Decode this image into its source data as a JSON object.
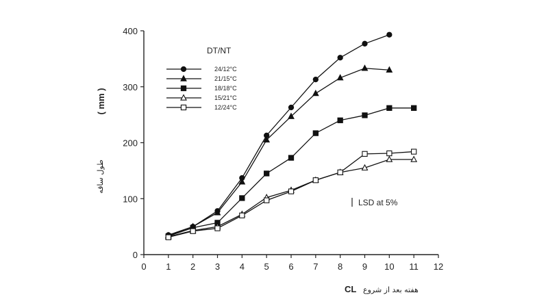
{
  "chart_data": {
    "type": "line",
    "x": [
      1,
      2,
      3,
      4,
      5,
      6,
      7,
      8,
      9,
      10,
      11
    ],
    "xlim": [
      0,
      12
    ],
    "ylim": [
      0,
      400
    ],
    "xticks": [
      "0",
      "1",
      "2",
      "3",
      "4",
      "5",
      "6",
      "7",
      "8",
      "9",
      "10",
      "11",
      "12"
    ],
    "yticks": [
      "0",
      "100",
      "200",
      "300",
      "400"
    ],
    "ylabel_unit": "( mm )",
    "ylabel": "طول ساقه",
    "xlabel_en": "CL",
    "xlabel_fa": "هفته بعد از شروع",
    "legend_title": "DT/NT",
    "legend_position": "top-left",
    "grid": false,
    "annotation": "LSD at 5%",
    "series": [
      {
        "name": "24/12°C",
        "marker": "circle-filled",
        "x": [
          1,
          2,
          3,
          4,
          5,
          6,
          7,
          8,
          9,
          10
        ],
        "values": [
          35,
          50,
          78,
          137,
          213,
          263,
          313,
          352,
          377,
          393
        ]
      },
      {
        "name": "21/15°C",
        "marker": "triangle-filled",
        "x": [
          1,
          2,
          3,
          4,
          5,
          6,
          7,
          8,
          9,
          10
        ],
        "values": [
          34,
          50,
          75,
          130,
          205,
          247,
          288,
          316,
          333,
          330
        ]
      },
      {
        "name": "18/18°C",
        "marker": "square-filled",
        "x": [
          1,
          2,
          3,
          4,
          5,
          6,
          7,
          8,
          9,
          10,
          11
        ],
        "values": [
          33,
          48,
          57,
          101,
          145,
          173,
          217,
          240,
          249,
          262,
          262
        ]
      },
      {
        "name": "15/21°C",
        "marker": "triangle-open",
        "x": [
          1,
          2,
          3,
          4,
          5,
          6,
          7,
          8,
          9,
          10,
          11
        ],
        "values": [
          32,
          43,
          50,
          72,
          102,
          115,
          133,
          147,
          155,
          170,
          170
        ]
      },
      {
        "name": "12/24°C",
        "marker": "square-open",
        "x": [
          1,
          2,
          3,
          4,
          5,
          6,
          7,
          8,
          9,
          10,
          11
        ],
        "values": [
          31,
          42,
          47,
          70,
          97,
          113,
          133,
          147,
          180,
          181,
          184
        ]
      }
    ]
  }
}
